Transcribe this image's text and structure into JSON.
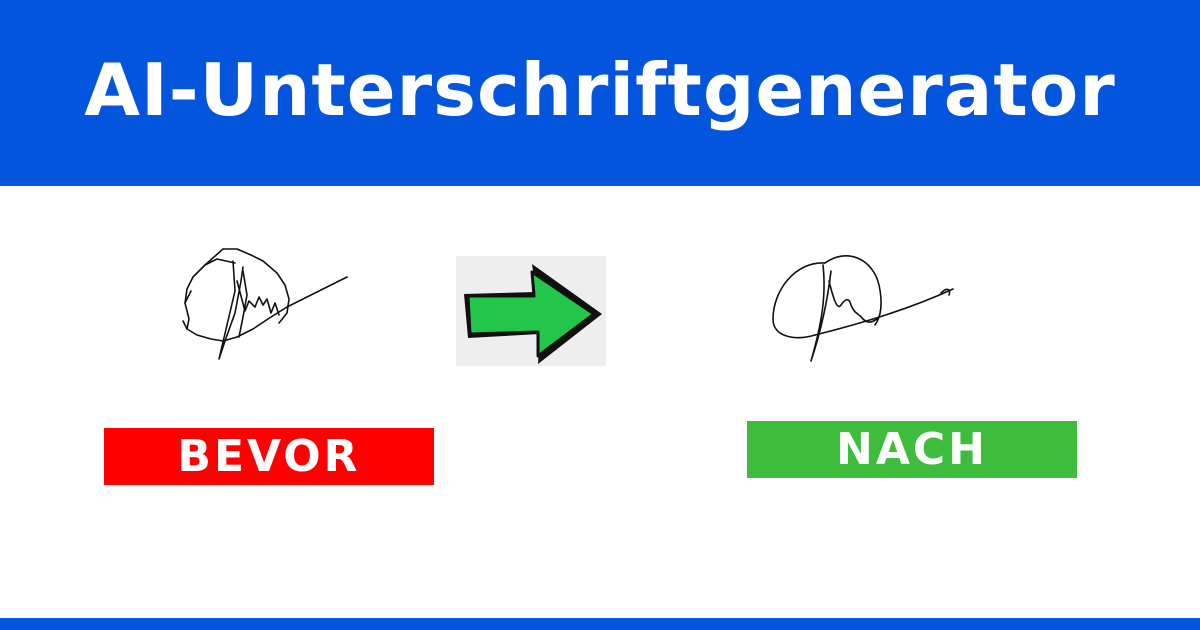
{
  "header": {
    "title": "AI-Unterschriftgenerator"
  },
  "comparison": {
    "before_label": "BEVOR",
    "after_label": "NACH",
    "arrow_icon": "right-arrow-icon"
  },
  "colors": {
    "brand_blue": "#0355dd",
    "before_red": "#fe0000",
    "after_green": "#3ebc3b",
    "arrow_green": "#22c64a",
    "arrow_background": "#eeeeee"
  }
}
